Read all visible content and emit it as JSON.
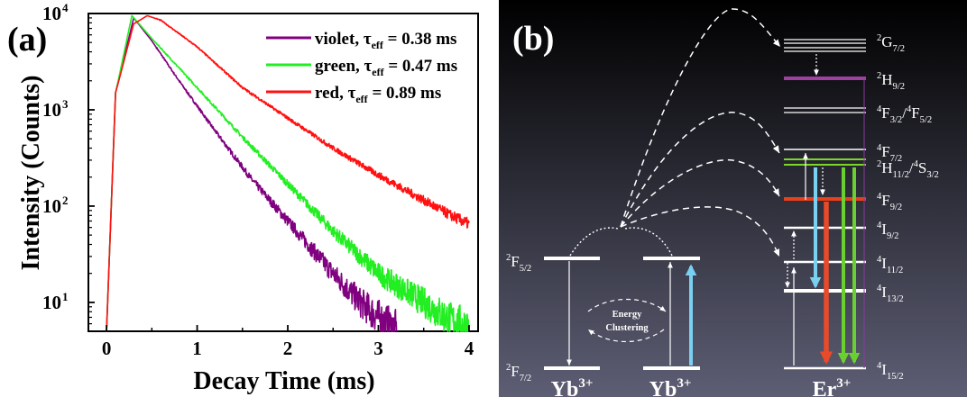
{
  "panel_a": {
    "label": "(a)",
    "chart_data": {
      "type": "line",
      "title": "",
      "xlabel": "Decay Time (ms)",
      "ylabel": "Intensity (Counts)",
      "xlim": [
        -0.2,
        4.1
      ],
      "ylim_log10": [
        0.7,
        4.0
      ],
      "y_scale": "log",
      "x_ticks": [
        0,
        1,
        2,
        3,
        4
      ],
      "x_tick_labels": [
        "0",
        "1",
        "2",
        "3",
        "4"
      ],
      "y_ticks": [
        10,
        100,
        1000,
        10000
      ],
      "y_tick_labels": [
        {
          "base": "10",
          "exp": "1"
        },
        {
          "base": "10",
          "exp": "2"
        },
        {
          "base": "10",
          "exp": "3"
        },
        {
          "base": "10",
          "exp": "4"
        }
      ],
      "legend_position": "top-right",
      "grid": false,
      "series": [
        {
          "name": "violet",
          "tau_label": "0.38 ms",
          "color": "#800080",
          "x": [
            0.0,
            0.1,
            0.3,
            0.5,
            0.8,
            1.2,
            1.6,
            2.0,
            2.5,
            2.8,
            3.0,
            3.2
          ],
          "y": [
            5,
            1500,
            9000,
            5200,
            2000,
            600,
            190,
            70,
            20,
            10,
            7,
            5
          ]
        },
        {
          "name": "green",
          "tau_label": "0.47 ms",
          "color": "#22ee22",
          "x": [
            0.0,
            0.1,
            0.28,
            0.5,
            1.0,
            1.5,
            2.0,
            2.5,
            3.0,
            3.5,
            3.8,
            4.0
          ],
          "y": [
            5,
            1500,
            9500,
            5500,
            1700,
            520,
            170,
            55,
            20,
            10,
            6.5,
            5.5
          ]
        },
        {
          "name": "red",
          "tau_label": "0.89 ms",
          "color": "#ff1111",
          "x": [
            0.0,
            0.1,
            0.3,
            0.45,
            0.6,
            1.0,
            1.5,
            2.0,
            2.5,
            3.0,
            3.5,
            3.8,
            4.0
          ],
          "y": [
            5,
            1500,
            7800,
            9500,
            8500,
            4500,
            1700,
            820,
            400,
            210,
            115,
            80,
            65
          ]
        }
      ]
    },
    "legend_items": [
      {
        "name": "violet",
        "tau_label": "0.38 ms",
        "color": "#800080"
      },
      {
        "name": "green",
        "tau_label": "0.47 ms",
        "color": "#22ee22"
      },
      {
        "name": "red",
        "tau_label": "0.89 ms",
        "color": "#ff1111"
      }
    ],
    "tau_symbol": "τ",
    "tau_subscript": "eff"
  },
  "panel_b": {
    "label": "(b)",
    "ions": [
      "Yb",
      "Yb",
      "Er"
    ],
    "ion_charge": "3+",
    "yb_levels": [
      {
        "base": "F",
        "sup": "2",
        "sub": "5/2"
      },
      {
        "base": "F",
        "sup": "2",
        "sub": "7/2"
      }
    ],
    "er_levels": [
      {
        "base": "G",
        "sup": "2",
        "sub": "7/2"
      },
      {
        "base": "H",
        "sup": "2",
        "sub": "9/2"
      },
      {
        "base": "F",
        "sup": "4",
        "sub": "3/2",
        "extra": "/",
        "base2": "F",
        "sup2": "4",
        "sub2": "5/2"
      },
      {
        "base": "F",
        "sup": "4",
        "sub": "7/2"
      },
      {
        "base": "H",
        "sup": "2",
        "sub": "11/2",
        "extra": "/",
        "base2": "S",
        "sup2": "4",
        "sub2": "3/2"
      },
      {
        "base": "F",
        "sup": "4",
        "sub": "9/2"
      },
      {
        "base": "I",
        "sup": "4",
        "sub": "9/2"
      },
      {
        "base": "I",
        "sup": "4",
        "sub": "11/2"
      },
      {
        "base": "I",
        "sup": "4",
        "sub": "13/2"
      },
      {
        "base": "I",
        "sup": "4",
        "sub": "15/2"
      }
    ],
    "clustering_text": [
      "Energy",
      "Clustering"
    ],
    "colors": {
      "background_top": "#000000",
      "background_bottom": "#5d5e74",
      "violet_level": "#a040a0",
      "green_level": "#7cd62a",
      "red_level": "#e8401c",
      "cyan_arrow": "#7ad0f0",
      "red_arrow": "#e84a2a",
      "green_arrow": "#6ad030"
    }
  }
}
